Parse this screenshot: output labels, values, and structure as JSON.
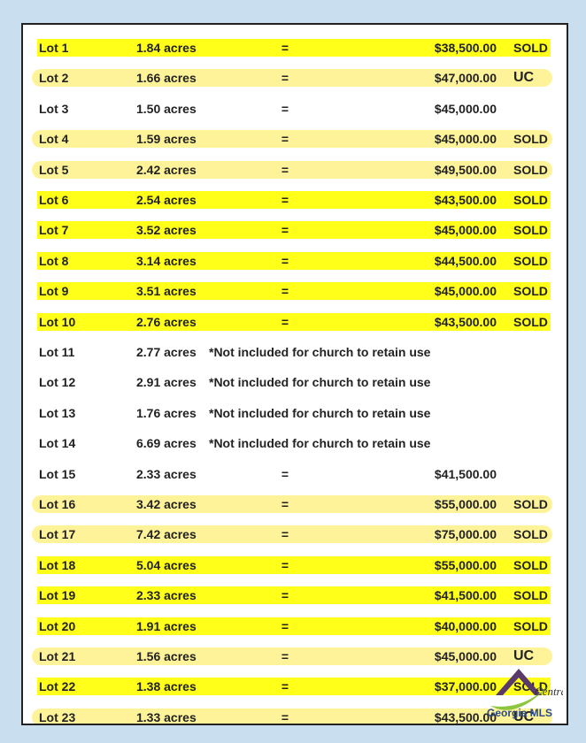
{
  "rows": [
    {
      "lot": "Lot 1",
      "acres": "1.84 acres",
      "sep": "=",
      "price": "$38,500.00",
      "status": "SOLD"
    },
    {
      "lot": "Lot 2",
      "acres": "1.66 acres",
      "sep": "=",
      "price": "$47,000.00",
      "status": "UC"
    },
    {
      "lot": "Lot 3",
      "acres": "1.50 acres",
      "sep": "=",
      "price": "$45,000.00"
    },
    {
      "lot": "Lot 4",
      "acres": "1.59 acres",
      "sep": "=",
      "price": "$45,000.00",
      "status": "SOLD"
    },
    {
      "lot": "Lot 5",
      "acres": "2.42 acres",
      "sep": "=",
      "price": "$49,500.00",
      "status": "SOLD"
    },
    {
      "lot": "Lot 6",
      "acres": "2.54 acres",
      "sep": "=",
      "price": "$43,500.00",
      "status": "SOLD"
    },
    {
      "lot": "Lot 7",
      "acres": "3.52 acres",
      "sep": "=",
      "price": "$45,000.00",
      "status": "SOLD"
    },
    {
      "lot": "Lot 8",
      "acres": "3.14 acres",
      "sep": "=",
      "price": "$44,500.00",
      "status": "SOLD"
    },
    {
      "lot": "Lot 9",
      "acres": "3.51 acres",
      "sep": "=",
      "price": "$45,000.00",
      "status": "SOLD"
    },
    {
      "lot": "Lot 10",
      "acres": "2.76 acres",
      "sep": "=",
      "price": "$43,500.00",
      "status": "SOLD"
    },
    {
      "lot": "Lot 11",
      "acres": "2.77 acres",
      "note": "*Not included for church to retain use"
    },
    {
      "lot": "Lot 12",
      "acres": "2.91 acres",
      "note": "*Not included for church to retain use"
    },
    {
      "lot": "Lot 13",
      "acres": "1.76 acres",
      "note": "*Not included for church to retain use"
    },
    {
      "lot": "Lot 14",
      "acres": "6.69 acres",
      "note": "*Not included for church to retain use"
    },
    {
      "lot": "Lot 15",
      "acres": "2.33 acres",
      "sep": "=",
      "price": "$41,500.00"
    },
    {
      "lot": "Lot 16",
      "acres": "3.42 acres",
      "sep": "=",
      "price": "$55,000.00",
      "status": "SOLD"
    },
    {
      "lot": "Lot 17",
      "acres": "7.42 acres",
      "sep": "=",
      "price": "$75,000.00",
      "status": "SOLD"
    },
    {
      "lot": "Lot 18",
      "acres": "5.04 acres",
      "sep": "=",
      "price": "$55,000.00",
      "status": "SOLD"
    },
    {
      "lot": "Lot 19",
      "acres": "2.33 acres",
      "sep": "=",
      "price": "$41,500.00",
      "status": "SOLD"
    },
    {
      "lot": "Lot 20",
      "acres": "1.91 acres",
      "sep": "=",
      "price": "$40,000.00",
      "status": "SOLD"
    },
    {
      "lot": "Lot 21",
      "acres": "1.56 acres",
      "sep": "=",
      "price": "$45,000.00",
      "status": "UC"
    },
    {
      "lot": "Lot 22",
      "acres": "1.38 acres",
      "sep": "=",
      "price": "$37,000.00",
      "status": "SOLD"
    },
    {
      "lot": "Lot 23",
      "acres": "1.33 acres",
      "sep": "=",
      "price": "$43,500.00",
      "status": "UC"
    }
  ],
  "logo": {
    "line1": "Central",
    "line2": "Georgia MLS"
  }
}
